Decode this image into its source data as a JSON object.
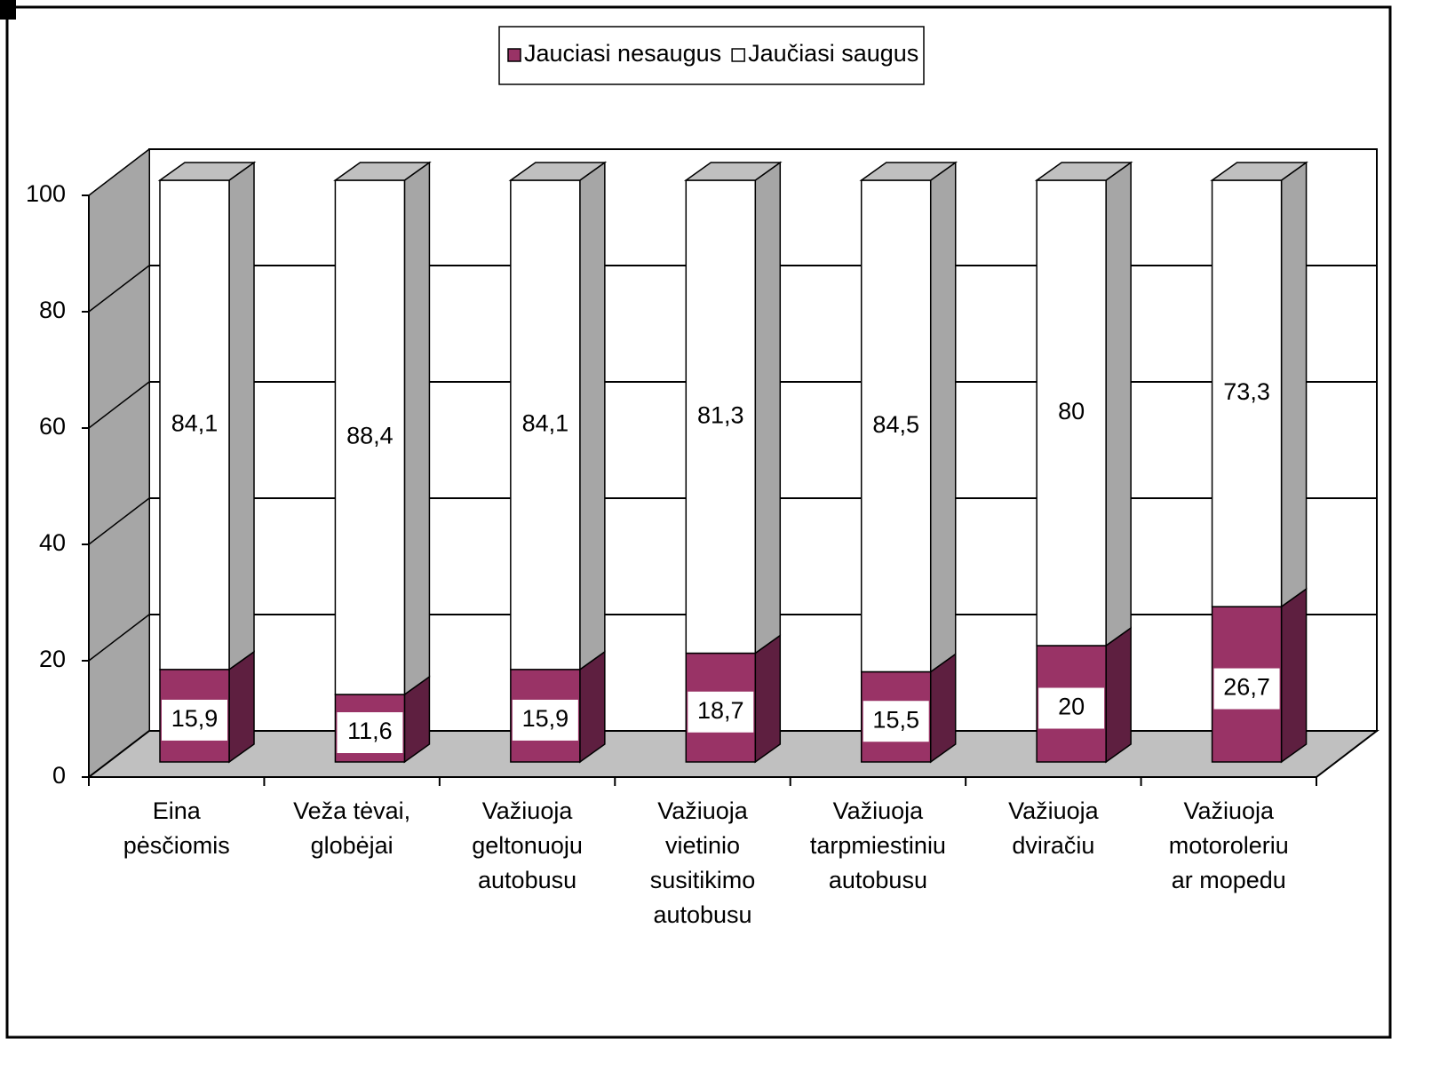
{
  "chart_data": {
    "type": "bar3d_stacked",
    "categories": [
      "Eina\npėsčiomis",
      "Veža tėvai,\nglobėjai",
      "Važiuoja\ngeltonuoju\nautobusu",
      "Važiuoja\nvietinio\nsusitikimo\nautobusu",
      "Važiuoja\ntarpmiestiniu\nautobusu",
      "Važiuoja\ndviračiu",
      "Važiuoja\nmotoroleriu\nar mopedu"
    ],
    "series": [
      {
        "name": "Jauciasi nesaugus",
        "color": "#993366",
        "values": [
          15.9,
          11.6,
          15.9,
          18.7,
          15.5,
          20,
          26.7
        ],
        "value_labels": [
          "15,9",
          "11,6",
          "15,9",
          "18,7",
          "15,5",
          "20",
          "26,7"
        ]
      },
      {
        "name": "Jaučiasi saugus",
        "color": "#ffffff",
        "values": [
          84.1,
          88.4,
          84.1,
          81.3,
          84.5,
          80,
          73.3
        ],
        "value_labels": [
          "84,1",
          "88,4",
          "84,1",
          "81,3",
          "84,5",
          "80",
          "73,3"
        ]
      }
    ],
    "ylim": [
      0,
      100
    ],
    "yticks": [
      0,
      20,
      40,
      60,
      80,
      100
    ],
    "grid": true,
    "legend": "top"
  }
}
